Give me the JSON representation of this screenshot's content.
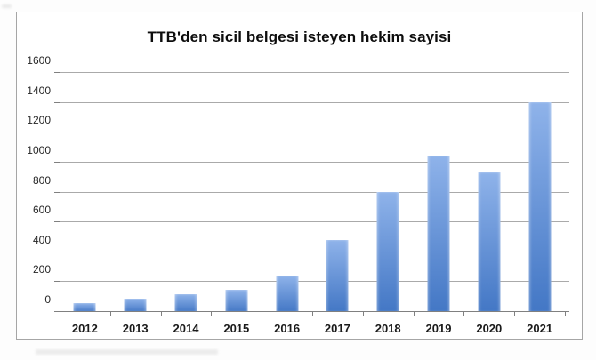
{
  "chart_data": {
    "type": "bar",
    "title": "TTB'den sicil belgesi isteyen hekim sayisi",
    "categories": [
      "2012",
      "2013",
      "2014",
      "2015",
      "2016",
      "2017",
      "2018",
      "2019",
      "2020",
      "2021"
    ],
    "values": [
      59,
      90,
      118,
      150,
      245,
      482,
      802,
      1047,
      931,
      1405
    ],
    "xlabel": "",
    "ylabel": "",
    "ylim": [
      0,
      1600
    ],
    "ytick_step": 200,
    "ytick_labels": [
      "0",
      "200",
      "400",
      "600",
      "800",
      "1000",
      "1200",
      "1400",
      "1600"
    ],
    "grid": true,
    "legend": false,
    "colors": {
      "bar_gradient_top": "#8fb3ea",
      "bar_gradient_bottom": "#4377c5",
      "gridline": "#aaaaaa",
      "axis_line": "#808080",
      "frame_border": "#a6a6a6",
      "title_text": "#0d0d0d",
      "tick_text": "#262626"
    }
  }
}
